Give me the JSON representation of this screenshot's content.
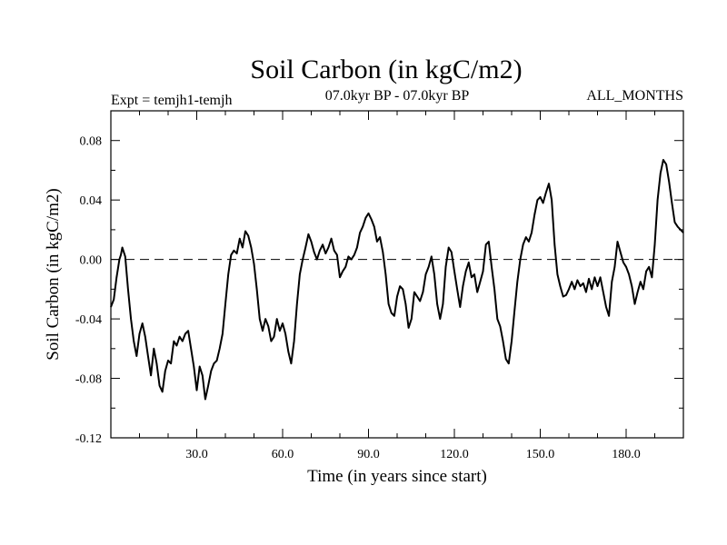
{
  "chart_data": {
    "type": "line",
    "title": "Soil Carbon (in kgC/m2)",
    "subtitle_left": "Expt = temjh1-temjh",
    "subtitle_center": "07.0kyr BP - 07.0kyr BP",
    "subtitle_right": "ALL_MONTHS",
    "xlabel": "Time (in years since start)",
    "ylabel": "Soil Carbon (in kgC/m2)",
    "xlim": [
      0,
      200
    ],
    "ylim": [
      -0.12,
      0.1
    ],
    "x_ticks": [
      30,
      60,
      90,
      120,
      150,
      180
    ],
    "x_tick_labels": [
      "30.0",
      "60.0",
      "90.0",
      "120.0",
      "150.0",
      "180.0"
    ],
    "y_ticks": [
      -0.12,
      -0.08,
      -0.04,
      0.0,
      0.04,
      0.08
    ],
    "y_tick_labels": [
      "-0.12",
      "-0.08",
      "-0.04",
      "0.00",
      "0.04",
      "0.08"
    ],
    "reference_line": 0.0,
    "series": [
      {
        "name": "Soil Carbon",
        "points": [
          [
            0,
            -0.032
          ],
          [
            1,
            -0.027
          ],
          [
            2,
            -0.012
          ],
          [
            3,
            0.0
          ],
          [
            3.5,
            0.003
          ],
          [
            4,
            0.008
          ],
          [
            5,
            0.002
          ],
          [
            6,
            -0.02
          ],
          [
            7,
            -0.04
          ],
          [
            8,
            -0.055
          ],
          [
            9,
            -0.065
          ],
          [
            10,
            -0.05
          ],
          [
            11,
            -0.043
          ],
          [
            12,
            -0.052
          ],
          [
            13,
            -0.065
          ],
          [
            14,
            -0.078
          ],
          [
            15,
            -0.06
          ],
          [
            16,
            -0.07
          ],
          [
            17,
            -0.085
          ],
          [
            18,
            -0.089
          ],
          [
            19,
            -0.075
          ],
          [
            20,
            -0.068
          ],
          [
            21,
            -0.07
          ],
          [
            22,
            -0.055
          ],
          [
            23,
            -0.058
          ],
          [
            24,
            -0.052
          ],
          [
            25,
            -0.055
          ],
          [
            26,
            -0.05
          ],
          [
            27,
            -0.048
          ],
          [
            28,
            -0.06
          ],
          [
            29,
            -0.072
          ],
          [
            30,
            -0.088
          ],
          [
            31,
            -0.072
          ],
          [
            32,
            -0.078
          ],
          [
            33,
            -0.094
          ],
          [
            34,
            -0.085
          ],
          [
            35,
            -0.075
          ],
          [
            36,
            -0.07
          ],
          [
            37,
            -0.068
          ],
          [
            38,
            -0.06
          ],
          [
            39,
            -0.05
          ],
          [
            40,
            -0.03
          ],
          [
            41,
            -0.01
          ],
          [
            42,
            0.003
          ],
          [
            43,
            0.006
          ],
          [
            44,
            0.004
          ],
          [
            45,
            0.014
          ],
          [
            46,
            0.008
          ],
          [
            47,
            0.019
          ],
          [
            48,
            0.016
          ],
          [
            49,
            0.008
          ],
          [
            50,
            -0.003
          ],
          [
            51,
            -0.02
          ],
          [
            52,
            -0.04
          ],
          [
            53,
            -0.048
          ],
          [
            54,
            -0.04
          ],
          [
            55,
            -0.045
          ],
          [
            56,
            -0.055
          ],
          [
            57,
            -0.052
          ],
          [
            58,
            -0.04
          ],
          [
            59,
            -0.048
          ],
          [
            60,
            -0.043
          ],
          [
            61,
            -0.05
          ],
          [
            62,
            -0.062
          ],
          [
            63,
            -0.07
          ],
          [
            64,
            -0.055
          ],
          [
            65,
            -0.03
          ],
          [
            66,
            -0.01
          ],
          [
            67,
            0.0
          ],
          [
            68,
            0.008
          ],
          [
            69,
            0.017
          ],
          [
            70,
            0.012
          ],
          [
            71,
            0.005
          ],
          [
            72,
            0.0
          ],
          [
            73,
            0.006
          ],
          [
            74,
            0.01
          ],
          [
            75,
            0.004
          ],
          [
            76,
            0.008
          ],
          [
            77,
            0.014
          ],
          [
            78,
            0.006
          ],
          [
            79,
            0.003
          ],
          [
            80,
            -0.012
          ],
          [
            81,
            -0.008
          ],
          [
            82,
            -0.005
          ],
          [
            83,
            0.002
          ],
          [
            84,
            0.0
          ],
          [
            85,
            0.003
          ],
          [
            86,
            0.008
          ],
          [
            87,
            0.018
          ],
          [
            88,
            0.022
          ],
          [
            89,
            0.028
          ],
          [
            90,
            0.031
          ],
          [
            91,
            0.027
          ],
          [
            92,
            0.022
          ],
          [
            93,
            0.012
          ],
          [
            94,
            0.015
          ],
          [
            95,
            0.005
          ],
          [
            96,
            -0.01
          ],
          [
            97,
            -0.03
          ],
          [
            98,
            -0.036
          ],
          [
            99,
            -0.038
          ],
          [
            100,
            -0.025
          ],
          [
            101,
            -0.018
          ],
          [
            102,
            -0.02
          ],
          [
            103,
            -0.03
          ],
          [
            104,
            -0.046
          ],
          [
            105,
            -0.04
          ],
          [
            106,
            -0.022
          ],
          [
            107,
            -0.025
          ],
          [
            108,
            -0.028
          ],
          [
            109,
            -0.022
          ],
          [
            110,
            -0.01
          ],
          [
            111,
            -0.005
          ],
          [
            112,
            0.002
          ],
          [
            113,
            -0.01
          ],
          [
            114,
            -0.03
          ],
          [
            115,
            -0.04
          ],
          [
            116,
            -0.03
          ],
          [
            117,
            -0.005
          ],
          [
            118,
            0.008
          ],
          [
            119,
            0.005
          ],
          [
            120,
            -0.008
          ],
          [
            121,
            -0.02
          ],
          [
            122,
            -0.032
          ],
          [
            123,
            -0.018
          ],
          [
            124,
            -0.008
          ],
          [
            125,
            -0.002
          ],
          [
            126,
            -0.012
          ],
          [
            127,
            -0.01
          ],
          [
            128,
            -0.022
          ],
          [
            129,
            -0.015
          ],
          [
            130,
            -0.008
          ],
          [
            131,
            0.01
          ],
          [
            132,
            0.012
          ],
          [
            133,
            -0.005
          ],
          [
            134,
            -0.02
          ],
          [
            135,
            -0.04
          ],
          [
            136,
            -0.045
          ],
          [
            137,
            -0.055
          ],
          [
            138,
            -0.067
          ],
          [
            139,
            -0.07
          ],
          [
            140,
            -0.055
          ],
          [
            141,
            -0.035
          ],
          [
            142,
            -0.015
          ],
          [
            143,
            0.0
          ],
          [
            144,
            0.01
          ],
          [
            145,
            0.015
          ],
          [
            146,
            0.012
          ],
          [
            147,
            0.018
          ],
          [
            148,
            0.03
          ],
          [
            149,
            0.04
          ],
          [
            150,
            0.042
          ],
          [
            151,
            0.038
          ],
          [
            152,
            0.045
          ],
          [
            153,
            0.051
          ],
          [
            154,
            0.04
          ],
          [
            155,
            0.01
          ],
          [
            156,
            -0.01
          ],
          [
            157,
            -0.018
          ],
          [
            158,
            -0.025
          ],
          [
            159,
            -0.024
          ],
          [
            160,
            -0.02
          ],
          [
            161,
            -0.015
          ],
          [
            162,
            -0.02
          ],
          [
            163,
            -0.014
          ],
          [
            164,
            -0.018
          ],
          [
            165,
            -0.016
          ],
          [
            166,
            -0.022
          ],
          [
            167,
            -0.013
          ],
          [
            168,
            -0.02
          ],
          [
            169,
            -0.012
          ],
          [
            170,
            -0.018
          ],
          [
            171,
            -0.012
          ],
          [
            172,
            -0.022
          ],
          [
            173,
            -0.032
          ],
          [
            174,
            -0.038
          ],
          [
            175,
            -0.015
          ],
          [
            176,
            -0.005
          ],
          [
            177,
            0.012
          ],
          [
            178,
            0.005
          ],
          [
            179,
            -0.002
          ],
          [
            180,
            -0.005
          ],
          [
            181,
            -0.01
          ],
          [
            182,
            -0.018
          ],
          [
            183,
            -0.03
          ],
          [
            184,
            -0.022
          ],
          [
            185,
            -0.015
          ],
          [
            186,
            -0.02
          ],
          [
            187,
            -0.008
          ],
          [
            188,
            -0.005
          ],
          [
            189,
            -0.012
          ],
          [
            190,
            0.01
          ],
          [
            191,
            0.04
          ],
          [
            192,
            0.058
          ],
          [
            193,
            0.067
          ],
          [
            194,
            0.064
          ],
          [
            195,
            0.052
          ],
          [
            196,
            0.038
          ],
          [
            197,
            0.025
          ],
          [
            198,
            0.022
          ],
          [
            199,
            0.02
          ],
          [
            200,
            0.018
          ]
        ]
      }
    ]
  }
}
